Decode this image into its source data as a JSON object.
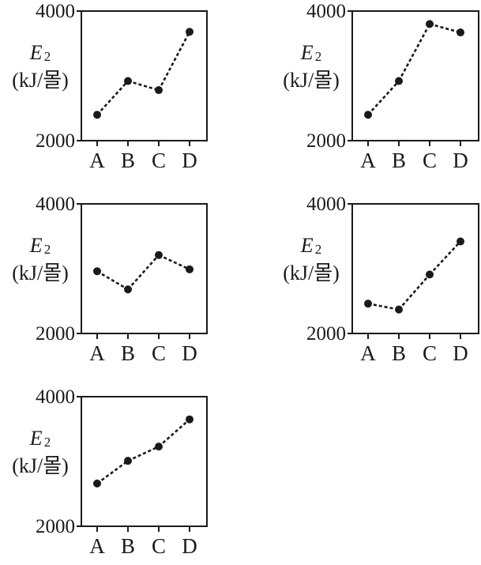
{
  "chart_data": [
    {
      "type": "line",
      "categories": [
        "A",
        "B",
        "C",
        "D"
      ],
      "values": [
        2400,
        2920,
        2780,
        3680
      ],
      "ylim": [
        2000,
        4000
      ],
      "yticks": [
        "4000",
        "2000"
      ],
      "ylabel_symbol": "E",
      "ylabel_subscript": "2",
      "ylabel_unit": "(kJ/몰)",
      "grid": false
    },
    {
      "type": "line",
      "categories": [
        "A",
        "B",
        "C",
        "D"
      ],
      "values": [
        2400,
        2920,
        3800,
        3670
      ],
      "ylim": [
        2000,
        4000
      ],
      "yticks": [
        "4000",
        "2000"
      ],
      "ylabel_symbol": "E",
      "ylabel_subscript": "2",
      "ylabel_unit": "(kJ/몰)",
      "grid": false
    },
    {
      "type": "line",
      "categories": [
        "A",
        "B",
        "C",
        "D"
      ],
      "values": [
        2960,
        2680,
        3210,
        2990
      ],
      "ylim": [
        2000,
        4000
      ],
      "yticks": [
        "4000",
        "2000"
      ],
      "ylabel_symbol": "E",
      "ylabel_subscript": "2",
      "ylabel_unit": "(kJ/몰)",
      "grid": false
    },
    {
      "type": "line",
      "categories": [
        "A",
        "B",
        "C",
        "D"
      ],
      "values": [
        2460,
        2370,
        2910,
        3420
      ],
      "ylim": [
        2000,
        4000
      ],
      "yticks": [
        "4000",
        "2000"
      ],
      "ylabel_symbol": "E",
      "ylabel_subscript": "2",
      "ylabel_unit": "(kJ/몰)",
      "grid": false
    },
    {
      "type": "line",
      "categories": [
        "A",
        "B",
        "C",
        "D"
      ],
      "values": [
        2660,
        3010,
        3230,
        3650
      ],
      "ylim": [
        2000,
        4000
      ],
      "yticks": [
        "4000",
        "2000"
      ],
      "ylabel_symbol": "E",
      "ylabel_subscript": "2",
      "ylabel_unit": "(kJ/몰)",
      "grid": false
    }
  ],
  "colors": {
    "ink": "#1a1a1a",
    "background": "#ffffff"
  }
}
